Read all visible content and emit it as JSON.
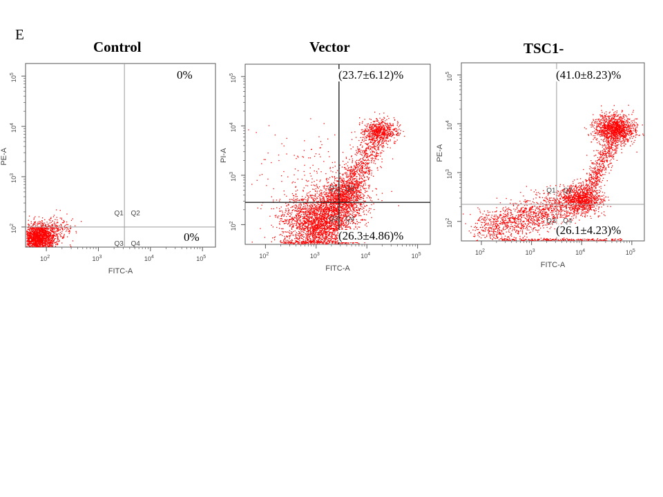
{
  "figure": {
    "panel_label": "E",
    "colors": {
      "dots": "#ff0000",
      "frame": "#555555",
      "gate_light": "#999999",
      "gate_dark": "#222222",
      "text": "#000000"
    }
  },
  "chart_data": [
    {
      "type": "scatter",
      "title": "Control",
      "xlabel": "FITC-A",
      "ylabel": "PE-A",
      "scale": "log10",
      "xlim": [
        1.6,
        5.25
      ],
      "ylim": [
        1.6,
        5.25
      ],
      "xticks": [
        "10^2",
        "10^3",
        "10^4",
        "10^5"
      ],
      "yticks": [
        "10^2",
        "10^3",
        "10^4",
        "10^5"
      ],
      "gate_lines": {
        "x": 3.5,
        "y": 2.0,
        "color": "#999999"
      },
      "quadrants": [
        "Q1",
        "Q2",
        "Q3",
        "Q4"
      ],
      "annotations": {
        "upper_right": "0%",
        "lower_right": "0%"
      },
      "populations": [
        {
          "cx": 1.85,
          "cy": 1.8,
          "sx": 0.17,
          "sy": 0.13,
          "n": 1700,
          "shape": "blob"
        },
        {
          "cx": 2.2,
          "cy": 2.0,
          "sx": 0.18,
          "sy": 0.12,
          "n": 160,
          "shape": "blob"
        }
      ]
    },
    {
      "type": "scatter",
      "title": "Vector",
      "xlabel": "FITC-A",
      "ylabel": "PI-A",
      "scale": "log10",
      "xlim": [
        1.6,
        5.25
      ],
      "ylim": [
        1.6,
        5.25
      ],
      "xticks": [
        "10^2",
        "10^3",
        "10^4",
        "10^5"
      ],
      "yticks": [
        "10^2",
        "10^3",
        "10^4",
        "10^5"
      ],
      "gate_lines": {
        "x": 3.45,
        "y": 2.45,
        "color": "#222222"
      },
      "quadrants": [
        "Q1",
        "Q2",
        "Q3",
        "Q4"
      ],
      "annotations": {
        "upper_right": "(23.7±6.12)%",
        "lower_right": "(26.3±4.86)%"
      },
      "populations": [
        {
          "cx": 3.05,
          "cy": 2.05,
          "sx": 0.35,
          "sy": 0.3,
          "n": 2600,
          "shape": "blob"
        },
        {
          "cx": 3.55,
          "cy": 2.55,
          "sx": 0.22,
          "sy": 0.2,
          "n": 1100,
          "shape": "blob"
        },
        {
          "cx": 4.25,
          "cy": 3.9,
          "sx": 0.17,
          "sy": 0.12,
          "n": 600,
          "shape": "blob"
        },
        {
          "x0": 3.6,
          "y0": 2.7,
          "x1": 4.2,
          "y1": 3.75,
          "spread": 0.14,
          "n": 700,
          "shape": "band"
        },
        {
          "cx": 2.8,
          "cy": 3.1,
          "sx": 0.7,
          "sy": 0.5,
          "n": 140,
          "shape": "blob"
        },
        {
          "x0": 2.3,
          "y0": 1.65,
          "x1": 3.8,
          "y1": 1.65,
          "spread": 0.02,
          "n": 200,
          "shape": "band"
        }
      ]
    },
    {
      "type": "scatter",
      "title": "TSC1-",
      "xlabel": "FITC-A",
      "ylabel": "PE-A",
      "scale": "log10",
      "xlim": [
        1.6,
        5.25
      ],
      "ylim": [
        1.6,
        5.25
      ],
      "xticks": [
        "10^2",
        "10^3",
        "10^4",
        "10^5"
      ],
      "yticks": [
        "10^2",
        "10^3",
        "10^4",
        "10^5"
      ],
      "gate_lines": {
        "x": 3.5,
        "y": 2.35,
        "color": "#999999"
      },
      "quadrants": [
        "Q1",
        "Q2",
        "Q3",
        "Q4"
      ],
      "annotations": {
        "upper_right": "(41.0±8.23)%",
        "lower_right": "(26.1±4.23)%"
      },
      "populations": [
        {
          "cx": 4.65,
          "cy": 3.9,
          "sx": 0.2,
          "sy": 0.15,
          "n": 1300,
          "shape": "blob"
        },
        {
          "cx": 4.0,
          "cy": 2.45,
          "sx": 0.2,
          "sy": 0.15,
          "n": 1000,
          "shape": "blob"
        },
        {
          "x0": 4.1,
          "y0": 2.6,
          "x1": 4.6,
          "y1": 3.6,
          "spread": 0.1,
          "n": 500,
          "shape": "band"
        },
        {
          "x0": 2.0,
          "y0": 1.8,
          "x1": 3.8,
          "y1": 2.4,
          "spread": 0.18,
          "n": 1300,
          "shape": "band"
        },
        {
          "x0": 2.4,
          "y0": 1.63,
          "x1": 4.8,
          "y1": 1.63,
          "spread": 0.015,
          "n": 260,
          "shape": "band"
        }
      ]
    }
  ]
}
